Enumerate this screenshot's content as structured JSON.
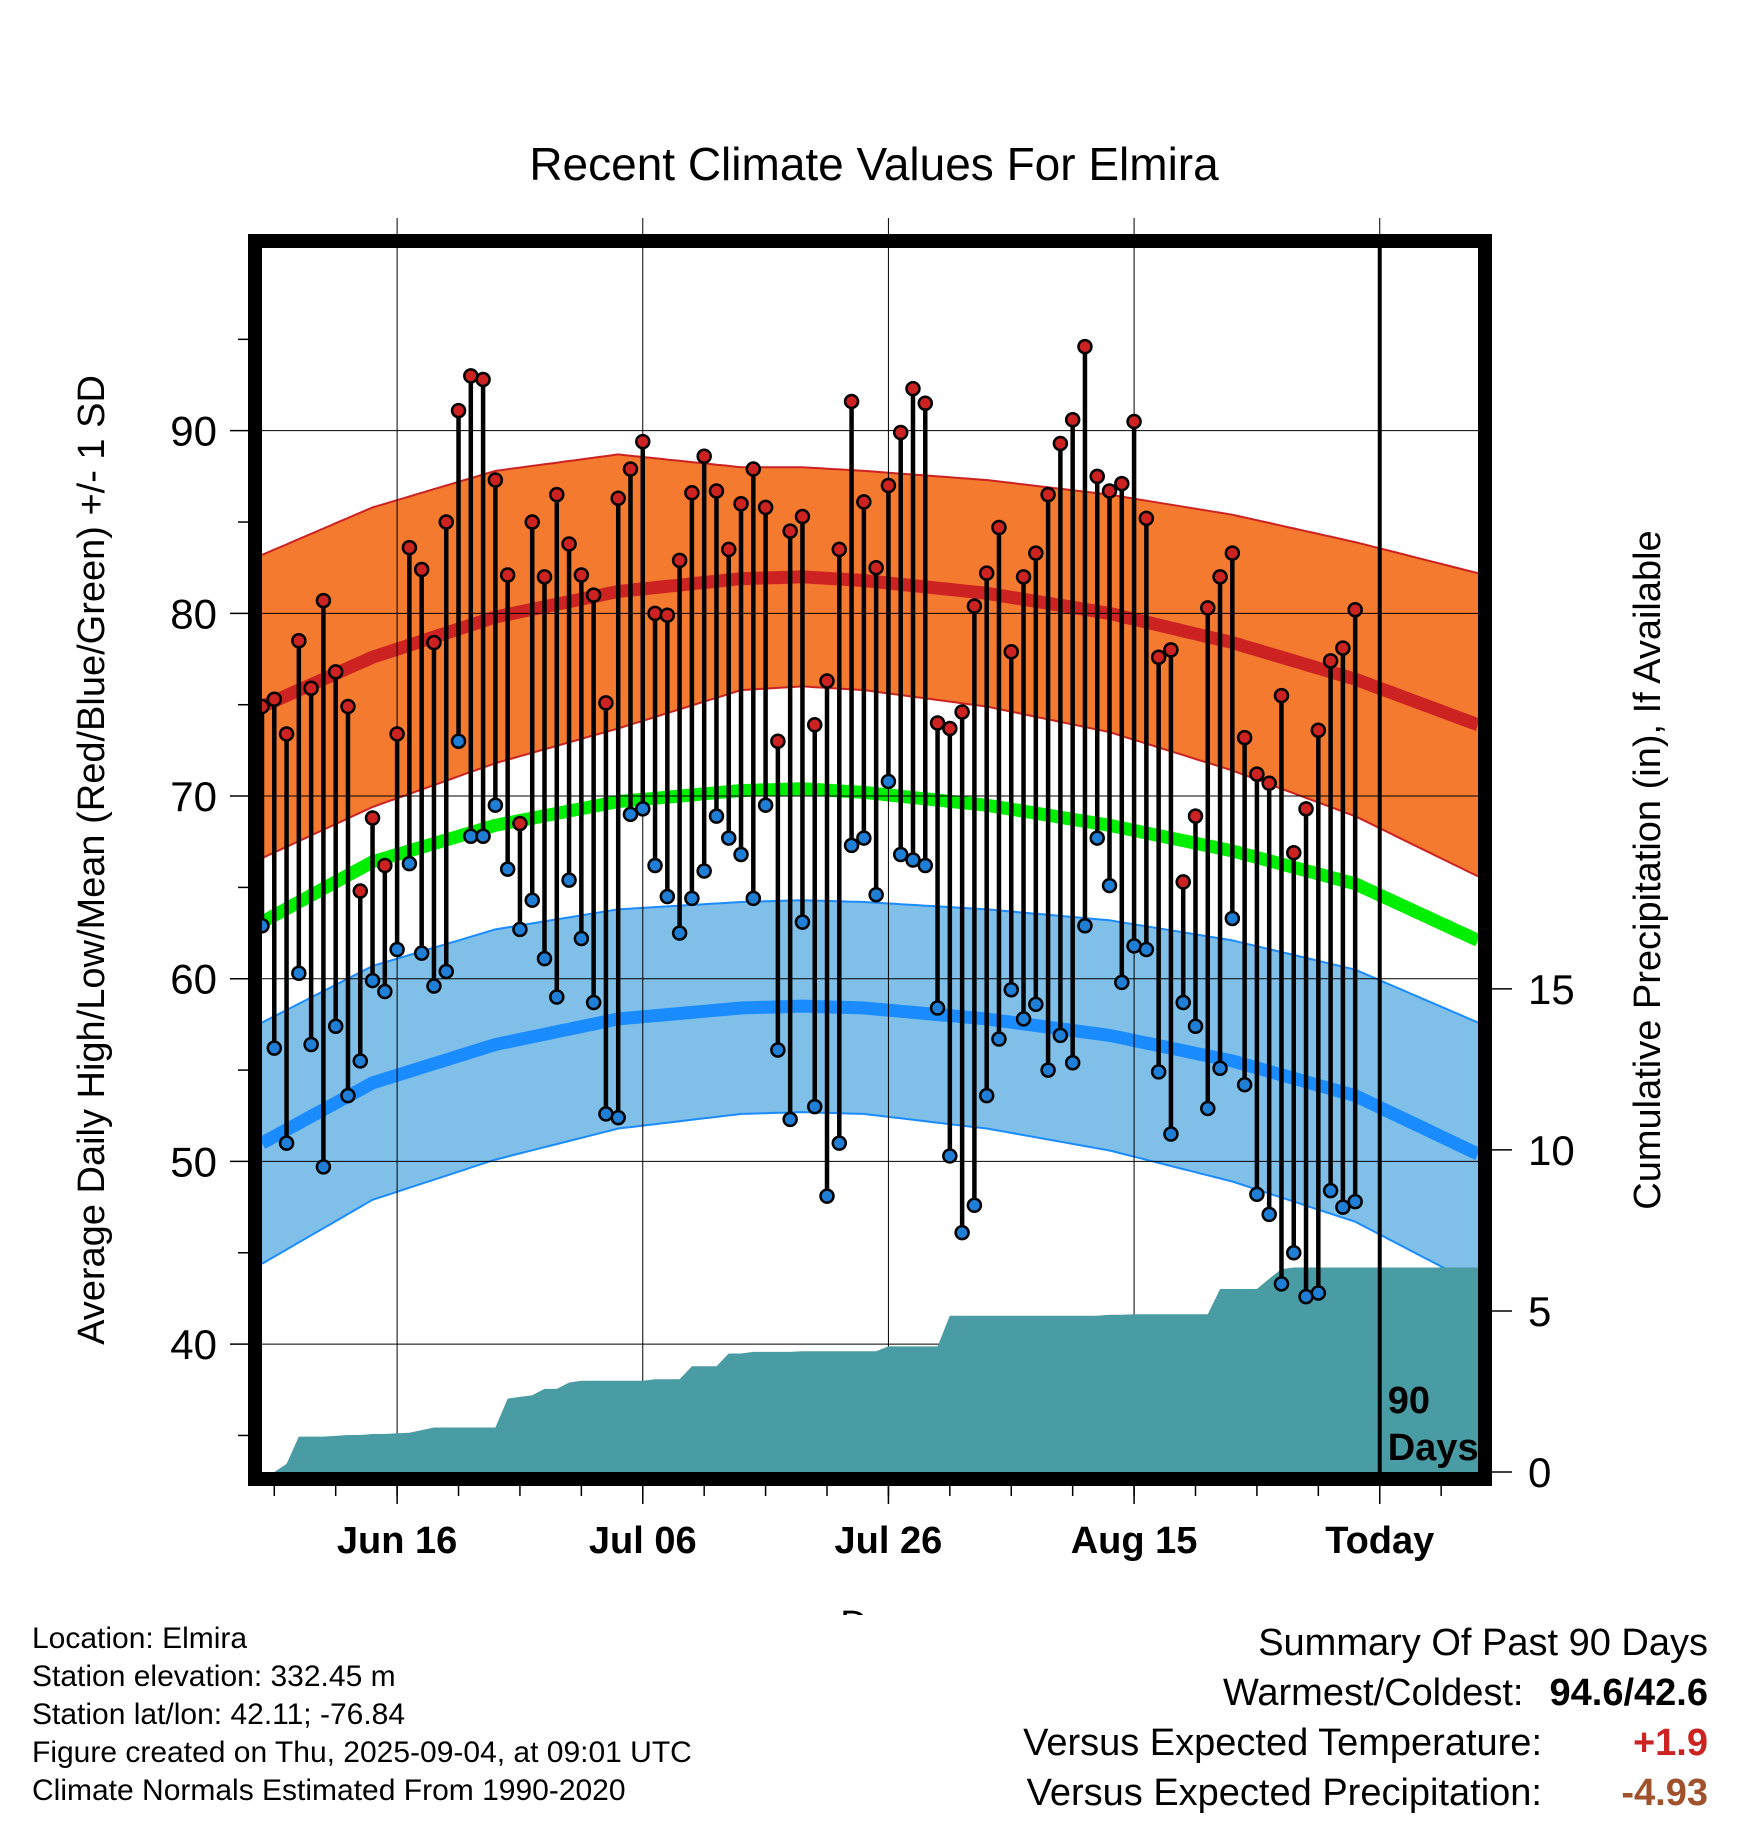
{
  "footer": {
    "location": "Location: Elmira",
    "elevation": "Station elevation: 332.45 m",
    "latlon": "Station lat/lon: 42.11; -76.84",
    "created": "Figure created on Thu, 2025-09-04, at 09:01 UTC",
    "normals": "Climate Normals Estimated From 1990-2020"
  },
  "summary": {
    "heading": "Summary Of Past 90 Days",
    "warm_cold_label": "Warmest/Coldest:",
    "warm_value": "94.6",
    "separator": "/",
    "cold_value": "42.6",
    "temp_label": "Versus Expected Temperature:",
    "temp_value": "+1.9",
    "precip_label": "Versus Expected Precipitation:",
    "precip_value": "-4.93"
  },
  "colors": {
    "high_band": "#f47a30",
    "high_line": "#cc2222",
    "low_band": "#80c0e8",
    "low_line": "#1a8cff",
    "mean_line": "#00ee00",
    "precip": "#4a9ca4",
    "high_dot": "#cc2222",
    "low_dot": "#1f7fd6",
    "warm_text": "#000000",
    "temp_anomaly": "#cc2222",
    "precip_anomaly": "#a0522d"
  },
  "chart_data": {
    "type": "line",
    "title": "Recent Climate Values For Elmira",
    "xlabel": "Day",
    "ylabel": "Average Daily High/Low/Mean (Red/Blue/Green) +/- 1 SD",
    "ylabel_right": "Cumulative Precipitation (in), If Available",
    "ylim": [
      33,
      100
    ],
    "ylim_right": [
      0,
      38
    ],
    "x_range": [
      1,
      100
    ],
    "x_ticks": [
      {
        "x": 12,
        "label": "Jun 16"
      },
      {
        "x": 32,
        "label": "Jul 06"
      },
      {
        "x": 52,
        "label": "Jul 26"
      },
      {
        "x": 72,
        "label": "Aug 15"
      },
      {
        "x": 92,
        "label": "Today"
      }
    ],
    "y_ticks": [
      40,
      50,
      60,
      70,
      80,
      90
    ],
    "y_ticks_right": [
      0,
      5,
      10,
      15
    ],
    "grid": true,
    "today_label": "90 Days",
    "today_x": 92,
    "normals_x": [
      1,
      10,
      20,
      30,
      40,
      45,
      50,
      60,
      70,
      80,
      90,
      100
    ],
    "normal_high": [
      74.9,
      77.6,
      79.8,
      81.2,
      81.9,
      82.0,
      81.8,
      81.1,
      80.0,
      78.4,
      76.4,
      73.9
    ],
    "normal_high_sd": [
      8.3,
      8.2,
      8.0,
      7.5,
      6.1,
      6.0,
      6.0,
      6.2,
      6.5,
      7.0,
      7.5,
      8.3
    ],
    "normal_mean": [
      63.1,
      66.4,
      68.4,
      69.7,
      70.3,
      70.4,
      70.2,
      69.5,
      68.4,
      67.0,
      65.2,
      62.1
    ],
    "normal_low": [
      51.0,
      54.3,
      56.4,
      57.8,
      58.4,
      58.5,
      58.4,
      57.8,
      56.9,
      55.5,
      53.6,
      50.4
    ],
    "normal_low_sd": [
      6.6,
      6.4,
      6.3,
      6.0,
      5.8,
      5.8,
      5.8,
      6.0,
      6.3,
      6.6,
      6.9,
      7.2
    ],
    "observations": {
      "x": [
        1,
        2,
        3,
        4,
        5,
        6,
        7,
        8,
        9,
        10,
        11,
        12,
        13,
        14,
        15,
        16,
        17,
        18,
        19,
        20,
        21,
        22,
        23,
        24,
        25,
        26,
        27,
        28,
        29,
        30,
        31,
        32,
        33,
        34,
        35,
        36,
        37,
        38,
        39,
        40,
        41,
        42,
        43,
        44,
        45,
        46,
        47,
        48,
        49,
        50,
        51,
        52,
        53,
        54,
        55,
        56,
        57,
        58,
        59,
        60,
        61,
        62,
        63,
        64,
        65,
        66,
        67,
        68,
        69,
        70,
        71,
        72,
        73,
        74,
        75,
        76,
        77,
        78,
        79,
        80,
        81,
        82,
        83,
        84,
        85,
        86,
        87,
        88,
        89,
        90
      ],
      "high": [
        74.9,
        75.3,
        73.4,
        78.5,
        75.9,
        80.7,
        76.8,
        74.9,
        64.8,
        68.8,
        66.2,
        73.4,
        83.6,
        82.4,
        78.4,
        85.0,
        91.1,
        93.0,
        92.8,
        87.3,
        82.1,
        68.5,
        85.0,
        82.0,
        86.5,
        83.8,
        82.1,
        81.0,
        75.1,
        86.3,
        87.9,
        89.4,
        80.0,
        79.9,
        82.9,
        86.6,
        88.6,
        86.7,
        83.5,
        86.0,
        87.9,
        85.8,
        73.0,
        84.5,
        85.3,
        73.9,
        76.3,
        83.5,
        91.6,
        86.1,
        82.5,
        87.0,
        89.9,
        92.3,
        91.5,
        74.0,
        73.7,
        74.6,
        80.4,
        82.2,
        84.7,
        77.9,
        82.0,
        83.3,
        86.5,
        89.3,
        90.6,
        94.6,
        87.5,
        86.7,
        87.1,
        90.5,
        85.2,
        77.6,
        78.0,
        65.3,
        68.9,
        80.3,
        82.0,
        83.3,
        73.2,
        71.2,
        70.7,
        75.5,
        66.9,
        69.3,
        73.6,
        77.4,
        78.1,
        80.2
      ],
      "low": [
        62.9,
        56.2,
        51.0,
        60.3,
        56.4,
        49.7,
        57.4,
        53.6,
        55.5,
        59.9,
        59.3,
        61.6,
        66.3,
        61.4,
        59.6,
        60.4,
        73.0,
        67.8,
        67.8,
        69.5,
        66.0,
        62.7,
        64.3,
        61.1,
        59.0,
        65.4,
        62.2,
        58.7,
        52.6,
        52.4,
        69.0,
        69.3,
        66.2,
        64.5,
        62.5,
        64.4,
        65.9,
        68.9,
        67.7,
        66.8,
        64.4,
        69.5,
        56.1,
        52.3,
        63.1,
        53.0,
        48.1,
        51.0,
        67.3,
        67.7,
        64.6,
        70.8,
        66.8,
        66.5,
        66.2,
        58.4,
        50.3,
        46.1,
        47.6,
        53.6,
        56.7,
        59.4,
        57.8,
        58.6,
        55.0,
        56.9,
        55.4,
        62.9,
        67.7,
        65.1,
        59.8,
        61.8,
        61.6,
        54.9,
        51.5,
        58.7,
        57.4,
        52.9,
        55.1,
        63.3,
        54.2,
        48.2,
        47.1,
        43.3,
        45.0,
        42.6,
        42.8,
        48.4,
        47.5,
        47.8
      ]
    },
    "precip": {
      "x": [
        1,
        2,
        3,
        4,
        5,
        6,
        7,
        8,
        9,
        10,
        11,
        12,
        13,
        14,
        15,
        16,
        17,
        18,
        19,
        20,
        21,
        22,
        23,
        24,
        25,
        26,
        27,
        28,
        29,
        30,
        31,
        32,
        33,
        34,
        35,
        36,
        37,
        38,
        39,
        40,
        41,
        42,
        43,
        44,
        45,
        46,
        47,
        48,
        49,
        50,
        51,
        52,
        53,
        54,
        55,
        56,
        57,
        58,
        59,
        60,
        61,
        62,
        63,
        64,
        65,
        66,
        67,
        68,
        69,
        70,
        71,
        72,
        73,
        74,
        75,
        76,
        77,
        78,
        79,
        80,
        81,
        82,
        83,
        84,
        85,
        86,
        87,
        88,
        89,
        90,
        91,
        92,
        93,
        94,
        95,
        96,
        97,
        98,
        99,
        100
      ],
      "values": [
        0.0,
        0.0,
        0.25,
        1.1,
        1.1,
        1.1,
        1.12,
        1.15,
        1.15,
        1.18,
        1.18,
        1.2,
        1.22,
        1.3,
        1.38,
        1.38,
        1.38,
        1.38,
        1.38,
        1.38,
        2.28,
        2.33,
        2.38,
        2.58,
        2.58,
        2.78,
        2.83,
        2.83,
        2.83,
        2.83,
        2.83,
        2.83,
        2.88,
        2.88,
        2.88,
        3.28,
        3.28,
        3.28,
        3.68,
        3.68,
        3.73,
        3.73,
        3.73,
        3.73,
        3.75,
        3.75,
        3.75,
        3.75,
        3.75,
        3.75,
        3.75,
        3.9,
        3.9,
        3.9,
        3.9,
        3.9,
        4.85,
        4.85,
        4.85,
        4.85,
        4.85,
        4.85,
        4.85,
        4.85,
        4.85,
        4.85,
        4.85,
        4.85,
        4.85,
        4.88,
        4.88,
        4.9,
        4.9,
        4.9,
        4.9,
        4.9,
        4.9,
        4.9,
        5.68,
        5.68,
        5.68,
        5.68,
        6.0,
        6.3,
        6.35,
        6.35,
        6.35,
        6.35,
        6.35,
        6.35,
        6.35,
        6.35,
        6.35,
        6.35,
        6.35,
        6.35,
        6.35,
        6.35,
        6.35,
        6.35
      ]
    }
  }
}
